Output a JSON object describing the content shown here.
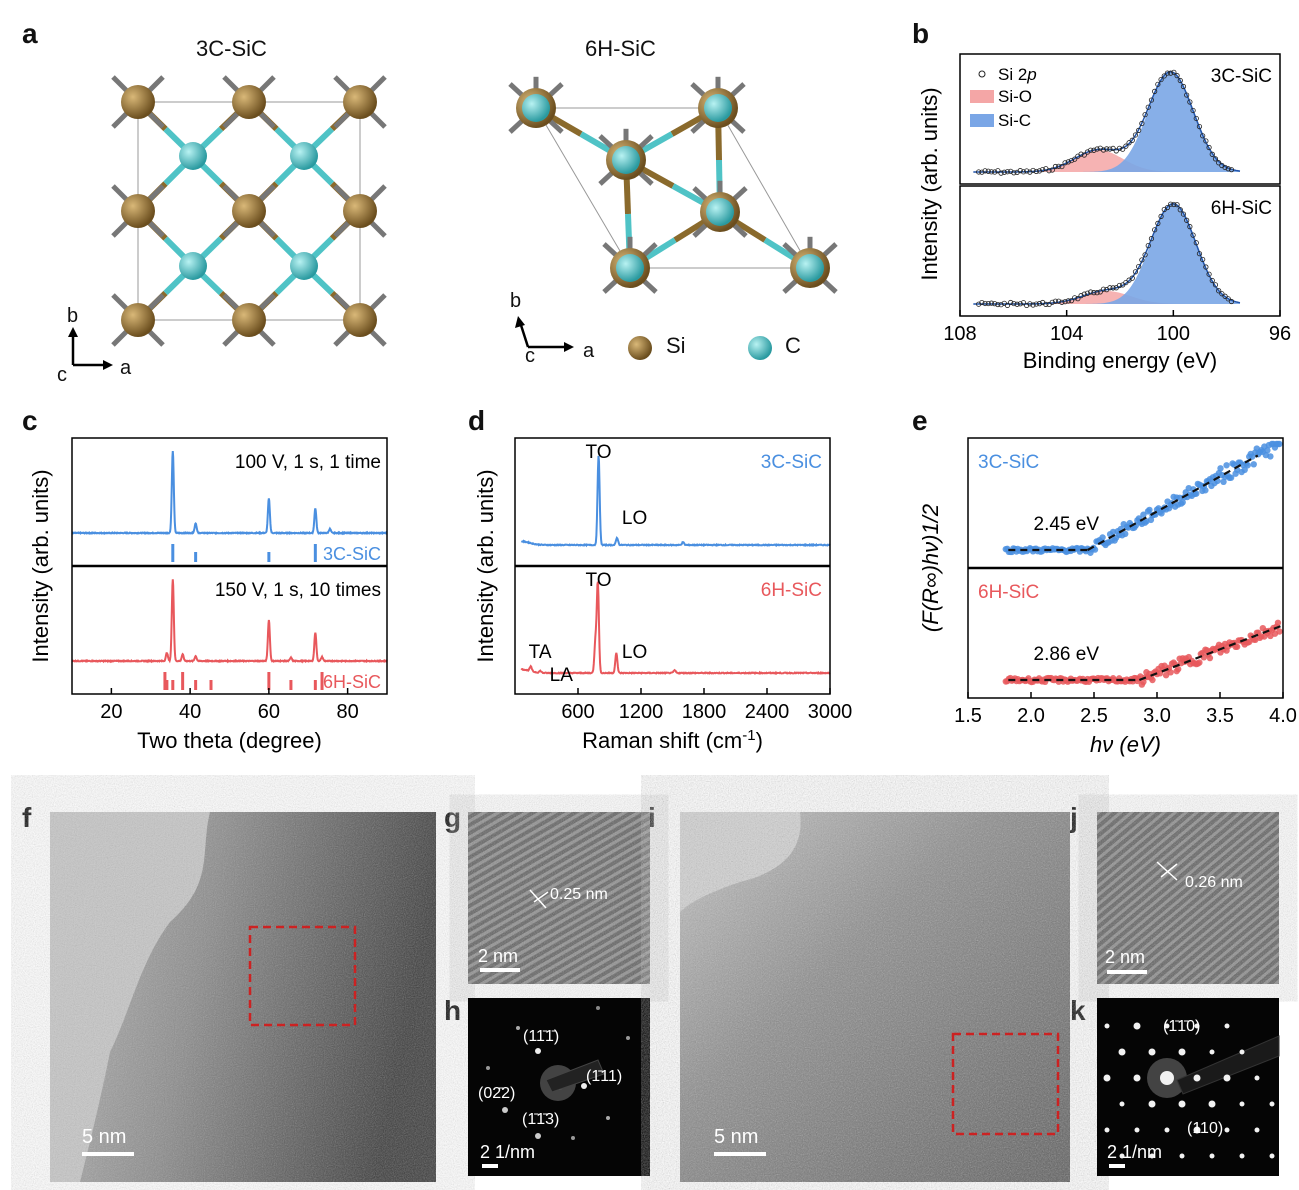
{
  "panel_labels": [
    "a",
    "b",
    "c",
    "d",
    "e",
    "f",
    "g",
    "h",
    "i",
    "j",
    "k"
  ],
  "panel_a": {
    "left_title": "3C-SiC",
    "right_title": "6H-SiC",
    "left_axes": {
      "b": "b",
      "c": "c",
      "a": "a"
    },
    "right_axes": {
      "b": "b",
      "c": "c",
      "a": "a"
    },
    "legend_si": "Si",
    "legend_c": "C",
    "si_color": "#8a6a2c",
    "c_color": "#4fc3c6"
  },
  "chart_data": [
    {
      "id": "b",
      "type": "line",
      "xlabel": "Binding energy (eV)",
      "ylabel": "Intensity (arb. units)",
      "xlim": [
        108,
        96
      ],
      "xticks": [
        "108",
        "104",
        "100",
        "96"
      ],
      "legend": [
        "Si 2p",
        "Si-O",
        "Si-C"
      ],
      "legend_si2p_prefix": "Si 2",
      "legend_si2p_italic": "p",
      "panels": [
        {
          "label": "3C-SiC",
          "si_o_center": 102.8,
          "si_o_height": 0.22,
          "si_c_center": 100.1,
          "si_c_height": 1.0
        },
        {
          "label": "6H-SiC",
          "si_o_center": 102.5,
          "si_o_height": 0.13,
          "si_c_center": 100.0,
          "si_c_height": 1.0
        }
      ],
      "colors": {
        "si_o": "#f4a6a6",
        "si_c": "#7aa6e6",
        "fit": "#2255aa"
      }
    },
    {
      "id": "c",
      "type": "line",
      "xlabel": "Two theta (degree)",
      "ylabel": "Intensity (arb. units)",
      "xlim": [
        10,
        90
      ],
      "xticks": [
        "20",
        "40",
        "60",
        "80"
      ],
      "panels": [
        {
          "label": "3C-SiC",
          "annotation": "100 V, 1 s, 1 time",
          "color": "#4a8fe0",
          "peaks": [
            [
              35.6,
              1.0
            ],
            [
              41.4,
              0.12
            ],
            [
              60.0,
              0.42
            ],
            [
              71.8,
              0.3
            ],
            [
              75.5,
              0.05
            ]
          ],
          "reference": [
            35.6,
            41.4,
            60.0,
            71.8
          ]
        },
        {
          "label": "6H-SiC",
          "annotation": "150 V, 1 s, 10 times",
          "color": "#e8585c",
          "peaks": [
            [
              34.1,
              0.1
            ],
            [
              35.6,
              1.0
            ],
            [
              38.1,
              0.08
            ],
            [
              41.4,
              0.06
            ],
            [
              60.0,
              0.5
            ],
            [
              65.6,
              0.04
            ],
            [
              71.8,
              0.35
            ],
            [
              73.5,
              0.05
            ]
          ],
          "reference": [
            33.6,
            34.1,
            35.6,
            38.1,
            41.4,
            45.3,
            60.0,
            65.6,
            71.8,
            73.5
          ]
        }
      ]
    },
    {
      "id": "d",
      "type": "line",
      "xlabel": "Raman shift (cm-1)",
      "xlabel_main": "Raman shift (cm",
      "xlabel_sup": "-1",
      "xlabel_close": ")",
      "ylabel": "Intensity (arb. units)",
      "xlim": [
        0,
        3000
      ],
      "xticks": [
        "600",
        "1200",
        "1800",
        "2400",
        "3000"
      ],
      "panels": [
        {
          "label": "3C-SiC",
          "color": "#4a8fe0",
          "peaks": [
            [
              796,
              1.0
            ],
            [
              972,
              0.08
            ],
            [
              1600,
              0.03
            ]
          ],
          "annotations": [
            "TO",
            "LO"
          ]
        },
        {
          "label": "6H-SiC",
          "color": "#e8585c",
          "peaks": [
            [
              150,
              0.05
            ],
            [
              241,
              0.02
            ],
            [
              766,
              0.35
            ],
            [
              789,
              1.0
            ],
            [
              965,
              0.22
            ],
            [
              1520,
              0.03
            ]
          ],
          "annotations": [
            "TO",
            "LO",
            "TA",
            "LA"
          ]
        }
      ]
    },
    {
      "id": "e",
      "type": "scatter",
      "xlabel": "hν (eV)",
      "ylabel": "(F(R∞)hν)1/2",
      "xlim": [
        1.5,
        4.0
      ],
      "xticks": [
        "1.5",
        "2.0",
        "2.5",
        "3.0",
        "3.5",
        "4.0"
      ],
      "panels": [
        {
          "label": "3C-SiC",
          "color": "#4a8fe0",
          "bandgap": "2.45 eV",
          "onset": 2.45
        },
        {
          "label": "6H-SiC",
          "color": "#e8585c",
          "bandgap": "2.86 eV",
          "onset": 2.86
        }
      ]
    }
  ],
  "tem": {
    "f_scale": "5 nm",
    "g_scale": "2 nm",
    "g_spacing": "0.25 nm",
    "h_scale": "2 1/nm",
    "h_spots": [
      "(11̄1̄)",
      "(1̄11)",
      "(02̄2)",
      "(1̄1̄3)"
    ],
    "i_scale": "5 nm",
    "j_scale": "2 nm",
    "j_spacing": "0.26 nm",
    "k_scale": "2 1/nm",
    "k_spots": [
      "(1̄1̄0)",
      "(110)"
    ]
  }
}
